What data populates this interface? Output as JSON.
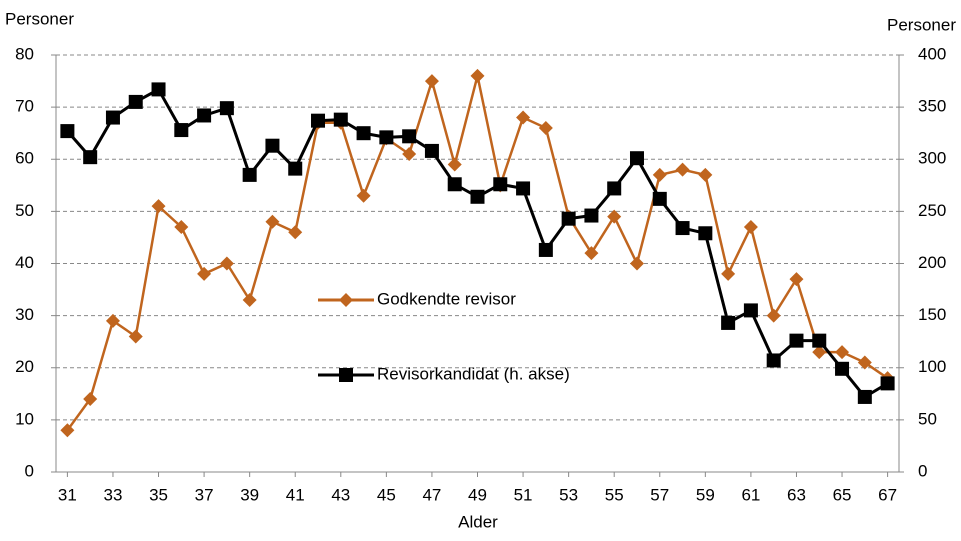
{
  "chart_data": {
    "type": "line",
    "y_label": "Personer",
    "y2_label": "Personer",
    "x_label": "Alder",
    "x": [
      31,
      32,
      33,
      34,
      35,
      36,
      37,
      38,
      39,
      40,
      41,
      42,
      43,
      44,
      45,
      46,
      47,
      48,
      49,
      50,
      51,
      52,
      53,
      54,
      55,
      56,
      57,
      58,
      59,
      60,
      61,
      62,
      63,
      64,
      65,
      66,
      67
    ],
    "xlim": [
      30.5,
      67.5
    ],
    "xticks": [
      31,
      33,
      35,
      37,
      39,
      41,
      43,
      45,
      47,
      49,
      51,
      53,
      55,
      57,
      59,
      61,
      63,
      65,
      67
    ],
    "ylim": [
      0,
      80
    ],
    "yticks": [
      0,
      10,
      20,
      30,
      40,
      50,
      60,
      70,
      80
    ],
    "y2lim": [
      0,
      400
    ],
    "y2ticks": [
      0,
      50,
      100,
      150,
      200,
      250,
      300,
      350,
      400
    ],
    "grid": true,
    "series": [
      {
        "name": "Godkendte revisor",
        "color": "#c0651e",
        "marker": "diamond",
        "values": [
          8,
          14,
          29,
          26,
          51,
          47,
          38,
          40,
          33,
          48,
          46,
          67,
          67,
          53,
          64,
          61,
          75,
          59,
          76,
          55,
          68,
          66,
          49,
          42,
          49,
          40,
          57,
          58,
          57,
          38,
          47,
          30,
          37,
          23,
          23,
          21,
          18
        ]
      },
      {
        "name": "Revisorkandidat (h. akse)",
        "color": "#000000",
        "marker": "square",
        "axis": "y2",
        "values": [
          327,
          302,
          340,
          355,
          367,
          328,
          342,
          349,
          285,
          313,
          291,
          337,
          338,
          325,
          321,
          322,
          308,
          276,
          264,
          276,
          272,
          213,
          243,
          246,
          272,
          301,
          262,
          234,
          229,
          143,
          155,
          107,
          126,
          126,
          99,
          72,
          85
        ]
      }
    ]
  }
}
